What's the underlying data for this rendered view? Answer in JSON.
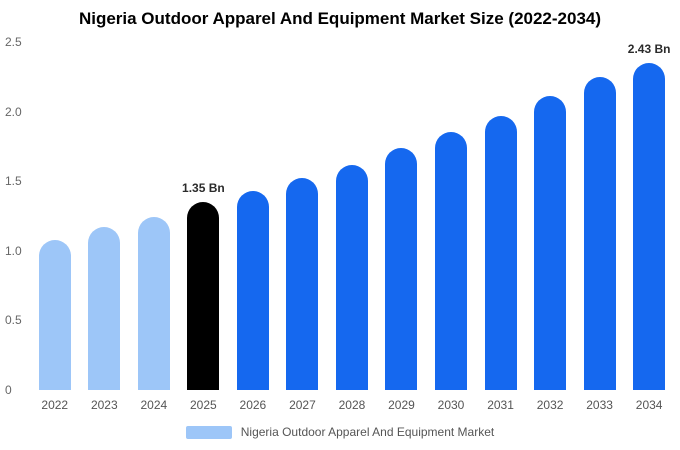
{
  "chart_data": {
    "type": "bar",
    "title": "Nigeria Outdoor Apparel And Equipment Market Size (2022-2034)",
    "xlabel": "",
    "ylabel": "",
    "unit": "Bn",
    "categories": [
      "2022",
      "2023",
      "2024",
      "2025",
      "2026",
      "2027",
      "2028",
      "2029",
      "2030",
      "2031",
      "2032",
      "2033",
      "2034"
    ],
    "values": [
      1.08,
      1.17,
      1.24,
      1.35,
      1.43,
      1.52,
      1.62,
      1.74,
      1.85,
      1.97,
      2.11,
      2.25,
      2.43
    ],
    "bar_colors": [
      "#9dc6f8",
      "#9dc6f8",
      "#9dc6f8",
      "#000000",
      "#1568ef",
      "#1568ef",
      "#1568ef",
      "#1568ef",
      "#1568ef",
      "#1568ef",
      "#1568ef",
      "#1568ef",
      "#1568ef"
    ],
    "ylim": [
      0,
      2.5
    ],
    "yticks": [
      "0",
      "0.5",
      "1.0",
      "1.5",
      "2.0",
      "2.5"
    ],
    "grid": false,
    "legend_position": "bottom",
    "annotations": [
      {
        "category": "2025",
        "text": "1.35 Bn"
      },
      {
        "category": "2034",
        "text": "2.43 Bn"
      }
    ]
  },
  "legend": {
    "label": "Nigeria Outdoor Apparel And Equipment Market",
    "swatch_color": "#9dc6f8"
  },
  "colors": {
    "historical_bar": "#9dc6f8",
    "base_year_bar": "#000000",
    "forecast_bar": "#1568ef",
    "background": "#ffffff"
  }
}
